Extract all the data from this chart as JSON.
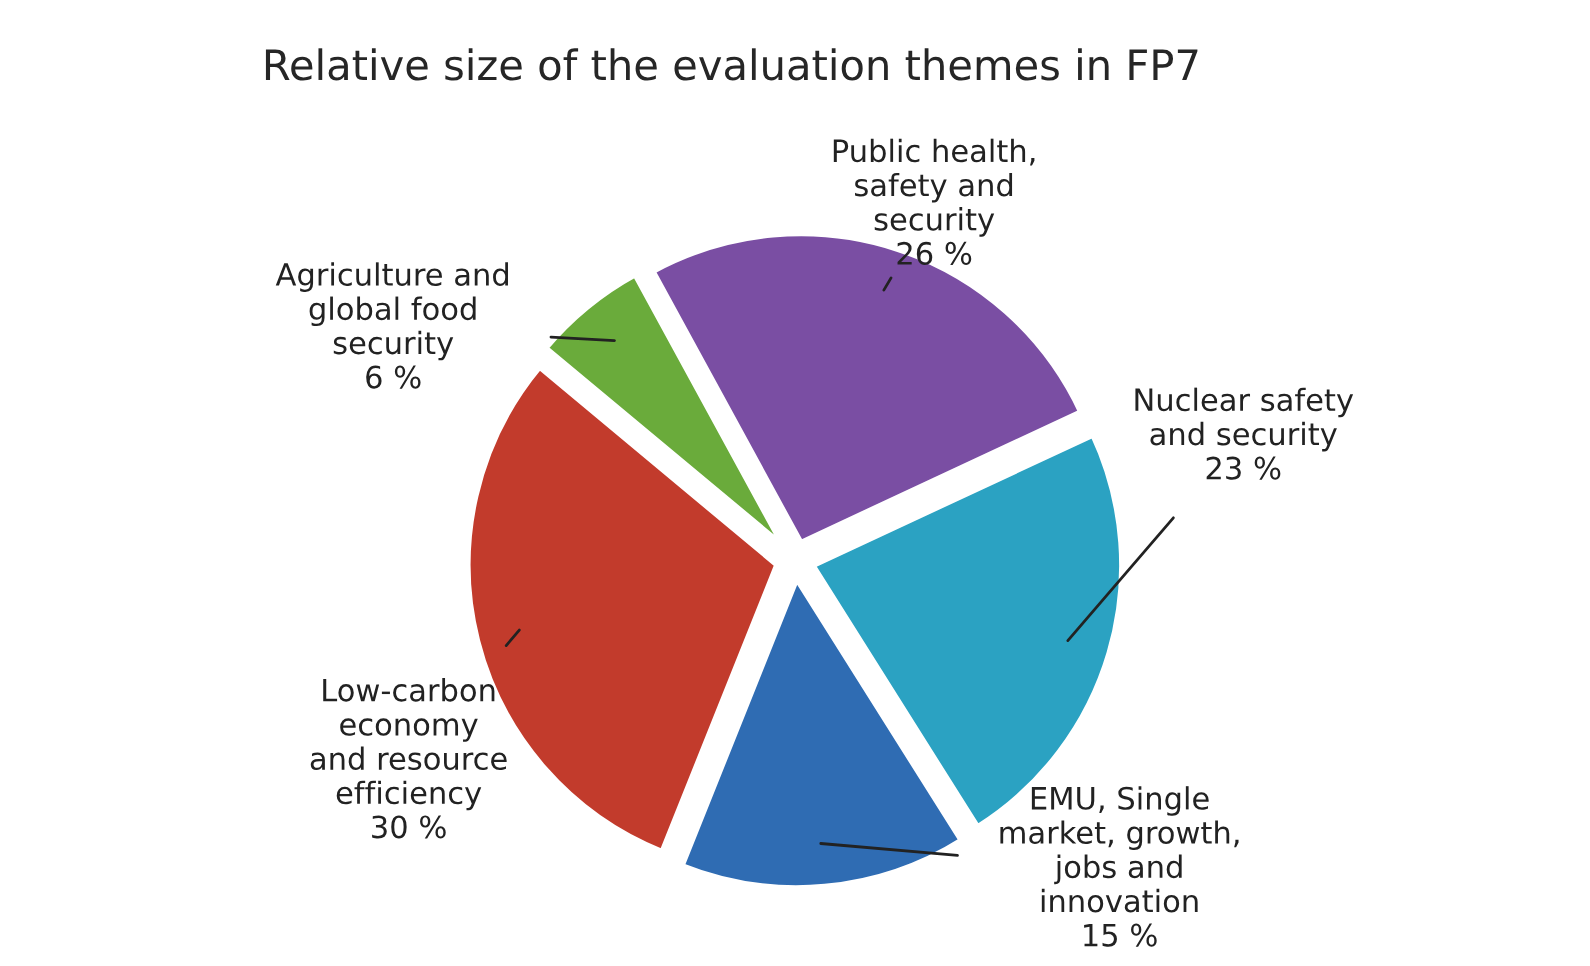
{
  "chart_data": {
    "type": "pie",
    "title": "Relative size of the evaluation themes in FP7",
    "categories": [
      "Public health,\nsafety and\nsecurity",
      "Nuclear safety\nand security",
      "EMU, Single\nmarket, growth,\njobs and\ninnovation",
      "Low-carbon\neconomy\nand resource\nefficiency",
      "Agriculture and\nglobal food\nsecurity"
    ],
    "values": [
      26,
      23,
      15,
      30,
      6
    ],
    "value_labels": [
      "26 %",
      "23 %",
      "15 %",
      "30 %",
      "6 %"
    ],
    "colors": [
      "#7a4ea3",
      "#2ba2c2",
      "#2f6cb3",
      "#c23b2c",
      "#6aab3b"
    ]
  }
}
